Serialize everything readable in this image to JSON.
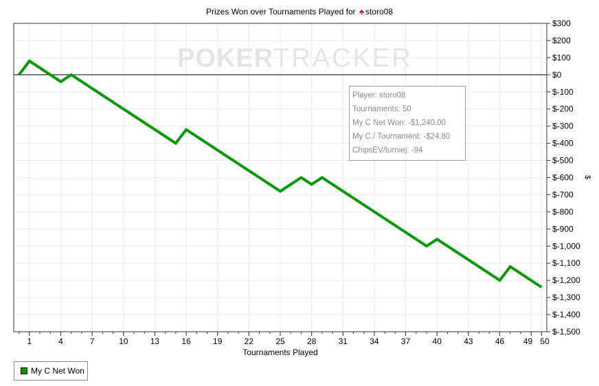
{
  "title": {
    "text": "Prizes Won over Tournaments Played for",
    "player": "storo08",
    "icon": "spade-icon"
  },
  "watermark": {
    "part1": "POKER",
    "part2": "TRACKER"
  },
  "tooltip": {
    "player": "Player: storo08",
    "tournaments": "Tournaments: 50",
    "net_won": "My C Net Won: -$1,240.00",
    "per_tournament": "My C / Tournament: -$24.80",
    "chips_ev": "ChipsEV/turniej: -94"
  },
  "legend": {
    "label": "My C Net Won",
    "color": "#009a00"
  },
  "chart_data": {
    "type": "line",
    "title": "Prizes Won over Tournaments Played for storo08",
    "xlabel": "Tournaments Played",
    "ylabel": "$",
    "xlim": [
      -0.5,
      50.5
    ],
    "ylim": [
      -1500,
      300
    ],
    "x_ticks": [
      1,
      4,
      7,
      10,
      13,
      16,
      19,
      22,
      25,
      28,
      31,
      34,
      37,
      40,
      43,
      46,
      49,
      50
    ],
    "y_ticks": [
      300,
      200,
      100,
      0,
      -100,
      -200,
      -300,
      -400,
      -500,
      -600,
      -700,
      -800,
      -900,
      -1000,
      -1100,
      -1200,
      -1300,
      -1400,
      -1500
    ],
    "y_tick_labels": [
      "$300",
      "$200",
      "$100",
      "$0",
      "$-100",
      "$-200",
      "$-300",
      "$-400",
      "$-500",
      "$-600",
      "$-700",
      "$-800",
      "$-900",
      "$-1,000",
      "$-1,100",
      "$-1,200",
      "$-1,300",
      "$-1,400",
      "$-1,500"
    ],
    "grid": true,
    "zero_line": true,
    "legend_position": "bottom-left",
    "series": [
      {
        "name": "My C Net Won",
        "color": "#009a00",
        "x": [
          0,
          1,
          4,
          5,
          15,
          16,
          25,
          27,
          28,
          29,
          39,
          40,
          46,
          47,
          50
        ],
        "y": [
          0,
          80,
          -40,
          0,
          -400,
          -320,
          -680,
          -600,
          -640,
          -600,
          -1000,
          -960,
          -1200,
          -1120,
          -1240
        ]
      }
    ]
  }
}
